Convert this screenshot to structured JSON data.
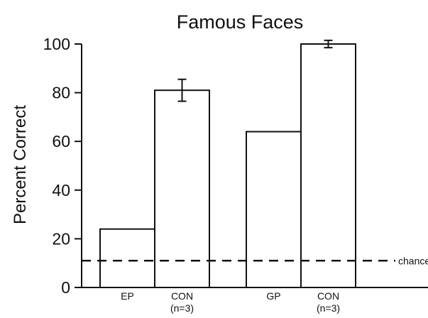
{
  "chart_data": {
    "type": "bar",
    "title": "Famous Faces",
    "ylabel": "Percent Correct",
    "xlabel": "",
    "ylim": [
      0,
      100
    ],
    "yticks": [
      0,
      20,
      40,
      60,
      80,
      100
    ],
    "categories": [
      {
        "label": "EP",
        "sublabel": ""
      },
      {
        "label": "CON",
        "sublabel": "(n=3)"
      },
      {
        "label": "GP",
        "sublabel": ""
      },
      {
        "label": "CON",
        "sublabel": "(n=3)"
      }
    ],
    "values": [
      24,
      81,
      64,
      100
    ],
    "errors": [
      null,
      4.5,
      null,
      1.5
    ],
    "reference_line": {
      "value": 11,
      "label": "chance",
      "style": "dashed"
    },
    "colors": {
      "bar_fill": "#ffffff",
      "stroke": "#111111"
    },
    "grid": false
  }
}
